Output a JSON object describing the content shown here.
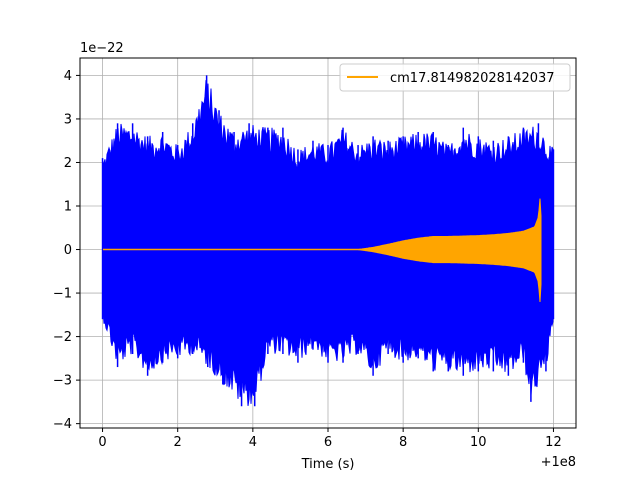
{
  "chart_data": {
    "type": "line",
    "title": "",
    "xlabel": "Time (s)",
    "ylabel": "",
    "x_offset_label": "+1e8",
    "y_scale_label": "1e−22",
    "xlim": [
      -0.6,
      12.6
    ],
    "ylim": [
      -4.1,
      4.4
    ],
    "xticks": [
      0,
      2,
      4,
      6,
      8,
      10,
      12
    ],
    "xtick_labels": [
      "0",
      "2",
      "4",
      "6",
      "8",
      "10",
      "12"
    ],
    "yticks": [
      -4,
      -3,
      -2,
      -1,
      0,
      1,
      2,
      3,
      4
    ],
    "ytick_labels": [
      "−4",
      "−3",
      "−2",
      "−1",
      "0",
      "1",
      "2",
      "3",
      "4"
    ],
    "grid": true,
    "legend_position": "top-right",
    "series": [
      {
        "color": "#0000ff",
        "x_range": [
          0.0,
          12.0
        ],
        "values_note": "",
        "envelope_upper": [
          [
            0.0,
            2.1
          ],
          [
            0.4,
            2.9
          ],
          [
            0.8,
            2.9
          ],
          [
            1.2,
            2.6
          ],
          [
            1.6,
            2.7
          ],
          [
            2.0,
            2.4
          ],
          [
            2.4,
            2.9
          ],
          [
            2.77,
            4.0
          ],
          [
            3.1,
            3.2
          ],
          [
            3.5,
            2.7
          ],
          [
            3.9,
            2.9
          ],
          [
            4.4,
            2.8
          ],
          [
            4.8,
            2.8
          ],
          [
            5.2,
            2.3
          ],
          [
            5.6,
            2.5
          ],
          [
            6.0,
            2.4
          ],
          [
            6.4,
            2.8
          ],
          [
            6.8,
            2.4
          ],
          [
            7.2,
            2.6
          ],
          [
            7.6,
            2.5
          ],
          [
            8.0,
            2.6
          ],
          [
            8.4,
            2.7
          ],
          [
            8.8,
            2.7
          ],
          [
            9.2,
            2.4
          ],
          [
            9.6,
            2.8
          ],
          [
            10.0,
            2.6
          ],
          [
            10.4,
            2.5
          ],
          [
            10.8,
            2.6
          ],
          [
            11.2,
            2.8
          ],
          [
            11.6,
            2.9
          ],
          [
            12.0,
            2.3
          ]
        ],
        "envelope_lower": [
          [
            0.0,
            -1.6
          ],
          [
            0.4,
            -2.7
          ],
          [
            0.8,
            -2.4
          ],
          [
            1.2,
            -2.9
          ],
          [
            1.6,
            -2.6
          ],
          [
            2.0,
            -2.5
          ],
          [
            2.4,
            -2.4
          ],
          [
            2.8,
            -2.7
          ],
          [
            3.2,
            -3.1
          ],
          [
            3.7,
            -3.6
          ],
          [
            4.05,
            -3.6
          ],
          [
            4.4,
            -2.4
          ],
          [
            4.8,
            -2.4
          ],
          [
            5.2,
            -2.6
          ],
          [
            5.6,
            -2.3
          ],
          [
            6.0,
            -2.6
          ],
          [
            6.4,
            -2.6
          ],
          [
            6.8,
            -2.4
          ],
          [
            7.2,
            -2.9
          ],
          [
            7.6,
            -2.4
          ],
          [
            8.0,
            -2.6
          ],
          [
            8.4,
            -2.5
          ],
          [
            8.8,
            -2.8
          ],
          [
            9.2,
            -2.8
          ],
          [
            9.6,
            -2.9
          ],
          [
            10.0,
            -2.8
          ],
          [
            10.4,
            -2.8
          ],
          [
            10.8,
            -2.9
          ],
          [
            11.2,
            -2.6
          ],
          [
            11.4,
            -3.5
          ],
          [
            11.8,
            -2.8
          ],
          [
            12.0,
            -1.6
          ]
        ]
      },
      {
        "name": "cm17.814982028142037",
        "color": "#ffa500",
        "x_range": [
          0.0,
          11.68
        ],
        "envelope_upper": [
          [
            0.0,
            0.0
          ],
          [
            6.8,
            0.0
          ],
          [
            7.2,
            0.05
          ],
          [
            7.6,
            0.12
          ],
          [
            8.0,
            0.2
          ],
          [
            8.4,
            0.26
          ],
          [
            8.8,
            0.3
          ],
          [
            9.2,
            0.3
          ],
          [
            9.6,
            0.31
          ],
          [
            10.0,
            0.32
          ],
          [
            10.4,
            0.34
          ],
          [
            10.8,
            0.37
          ],
          [
            11.2,
            0.42
          ],
          [
            11.5,
            0.52
          ],
          [
            11.6,
            0.75
          ],
          [
            11.66,
            1.35
          ],
          [
            11.68,
            0.0
          ]
        ],
        "envelope_lower": [
          [
            0.0,
            0.0
          ],
          [
            6.8,
            0.0
          ],
          [
            7.2,
            -0.05
          ],
          [
            7.6,
            -0.12
          ],
          [
            8.0,
            -0.2
          ],
          [
            8.4,
            -0.26
          ],
          [
            8.8,
            -0.3
          ],
          [
            9.2,
            -0.3
          ],
          [
            9.6,
            -0.31
          ],
          [
            10.0,
            -0.32
          ],
          [
            10.4,
            -0.34
          ],
          [
            10.8,
            -0.37
          ],
          [
            11.2,
            -0.42
          ],
          [
            11.5,
            -0.52
          ],
          [
            11.6,
            -0.75
          ],
          [
            11.66,
            -1.4
          ],
          [
            11.68,
            0.0
          ]
        ]
      }
    ]
  }
}
